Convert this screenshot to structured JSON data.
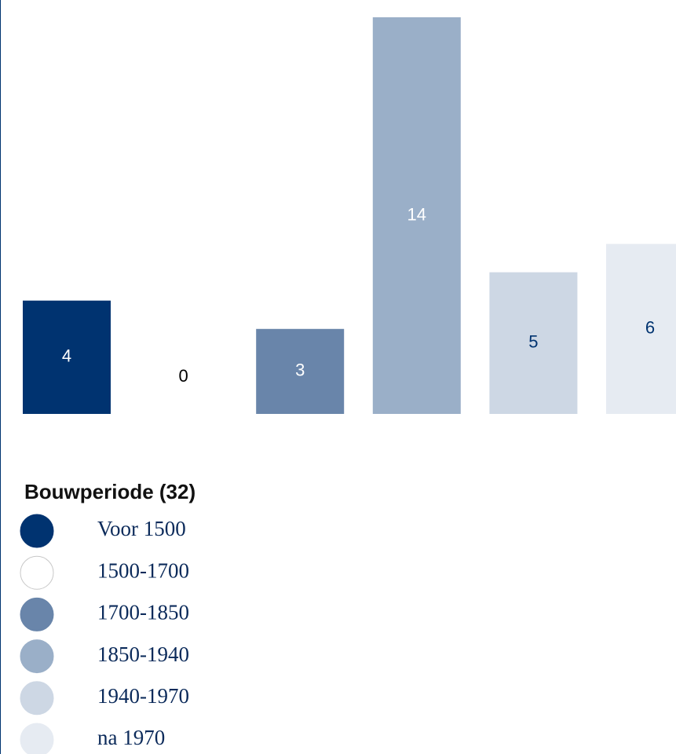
{
  "chart_data": {
    "type": "bar",
    "categories": [
      "Voor 1500",
      "1500-1700",
      "1700-1850",
      "1850-1940",
      "1940-1970",
      "na 1970"
    ],
    "values": [
      4,
      0,
      3,
      14,
      5,
      6
    ],
    "colors": [
      "#003370",
      "#ffffff",
      "#6985aa",
      "#9aafc8",
      "#cdd7e4",
      "#e6ebf2"
    ],
    "label_colors": [
      "#ffffff",
      "#000000",
      "#ffffff",
      "#ffffff",
      "#003370",
      "#003370"
    ],
    "legend_title": "Bouwperiode (32)"
  }
}
